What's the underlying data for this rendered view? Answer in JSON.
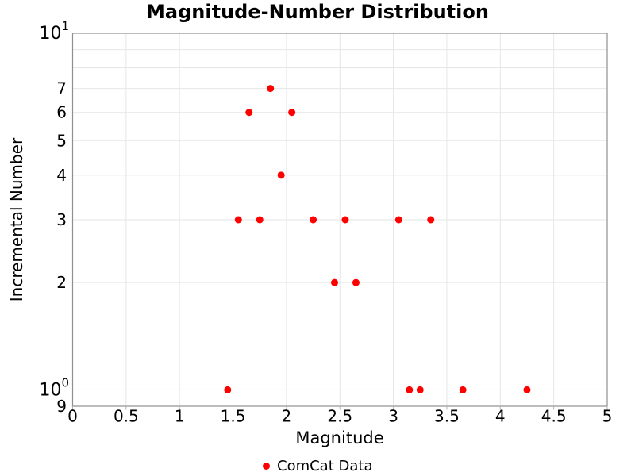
{
  "chart_data": {
    "type": "scatter",
    "title": "Magnitude-Number Distribution",
    "xlabel": "Magnitude",
    "ylabel": "Incremental Number",
    "x_axis": {
      "min": 0,
      "max": 5,
      "tick_values": [
        0,
        0.5,
        1,
        1.5,
        2,
        2.5,
        3,
        3.5,
        4,
        4.5,
        5
      ],
      "tick_labels": [
        "0",
        "0.5",
        "1",
        "1.5",
        "2",
        "2.5",
        "3",
        "3.5",
        "4",
        "4.5",
        "5"
      ]
    },
    "y_axis": {
      "scale": "log",
      "min": 0.9,
      "max": 10,
      "tick_labels": [
        {
          "value": 10,
          "base": "10",
          "exponent": "1"
        },
        {
          "value": 7,
          "text": "7"
        },
        {
          "value": 6,
          "text": "6"
        },
        {
          "value": 5,
          "text": "5"
        },
        {
          "value": 4,
          "text": "4"
        },
        {
          "value": 3,
          "text": "3"
        },
        {
          "value": 2,
          "text": "2"
        },
        {
          "value": 1,
          "base": "10",
          "exponent": "0"
        },
        {
          "value": 0.9,
          "text": "9"
        }
      ],
      "gridline_values": [
        1,
        2,
        3,
        4,
        5,
        6,
        7,
        8,
        9
      ]
    },
    "grid": {
      "show": true
    },
    "series": [
      {
        "name": "ComCat Data",
        "color": "#ff0000",
        "marker": "circle",
        "points": [
          [
            1.45,
            1
          ],
          [
            1.55,
            3
          ],
          [
            1.65,
            6
          ],
          [
            1.75,
            3
          ],
          [
            1.85,
            7
          ],
          [
            1.95,
            4
          ],
          [
            2.05,
            6
          ],
          [
            2.25,
            3
          ],
          [
            2.45,
            2
          ],
          [
            2.55,
            3
          ],
          [
            2.65,
            2
          ],
          [
            3.05,
            3
          ],
          [
            3.15,
            1
          ],
          [
            3.25,
            1
          ],
          [
            3.35,
            3
          ],
          [
            3.65,
            1
          ],
          [
            4.25,
            1
          ]
        ]
      }
    ],
    "legend": {
      "position": "bottom-center",
      "label": "ComCat Data",
      "marker_color": "#ff0000"
    },
    "colors": {
      "background": "#ffffff",
      "grid": "#e6e6e6",
      "axis_line": "#8f8f8f",
      "tick_mark": "#b3b3b3",
      "text": "#000000"
    }
  }
}
